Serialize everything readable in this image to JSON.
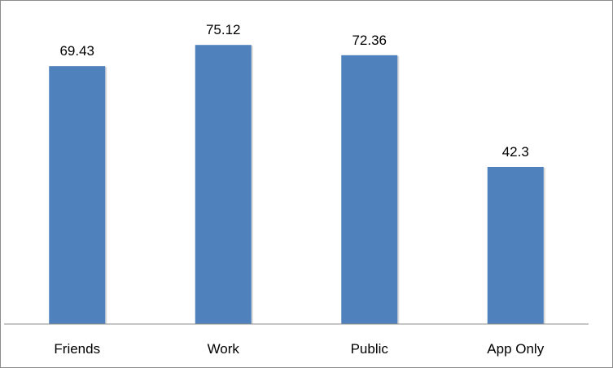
{
  "chart_data": {
    "type": "bar",
    "categories": [
      "Friends",
      "Work",
      "Public",
      "App Only"
    ],
    "values": [
      69.43,
      75.12,
      72.36,
      42.3
    ],
    "data_labels": [
      "69.43",
      "75.12",
      "72.36",
      "42.3"
    ],
    "title": "",
    "xlabel": "",
    "ylabel": "",
    "ylim": [
      0,
      87
    ],
    "grid": false,
    "legend": "none",
    "bar_color": "#4f81bd"
  }
}
